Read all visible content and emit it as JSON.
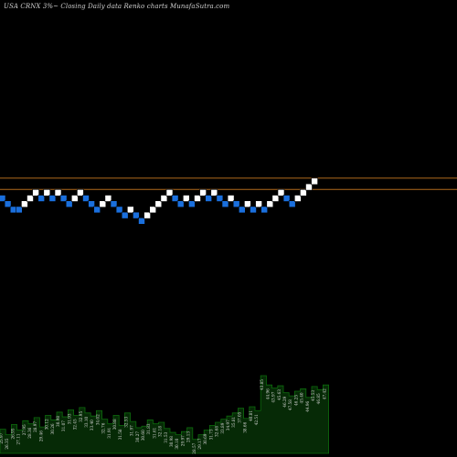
{
  "header": {
    "title": "USA CRNX  3%~  Closing Daily data  Renko  charts MunafaSutra.com"
  },
  "colors": {
    "background": "#000000",
    "up_brick": "#ffffff",
    "down_brick": "#1a6fdd",
    "reference_line": "#b06a1c",
    "volume_fill": "#062a06",
    "volume_edge": "#0d6a0d"
  },
  "chart_data": {
    "type": "renko",
    "title": "USA CRNX  3%~  Closing Daily data  Renko  charts MunafaSutra.com",
    "brick_size_note": "3%",
    "grid": false,
    "legend": "none",
    "bricks": [
      {
        "dir": "down",
        "level": 0
      },
      {
        "dir": "down",
        "level": -1
      },
      {
        "dir": "down",
        "level": -2
      },
      {
        "dir": "down",
        "level": -2
      },
      {
        "dir": "up",
        "level": -1
      },
      {
        "dir": "up",
        "level": 0
      },
      {
        "dir": "up",
        "level": 1
      },
      {
        "dir": "down",
        "level": 0
      },
      {
        "dir": "up",
        "level": 1
      },
      {
        "dir": "down",
        "level": 0
      },
      {
        "dir": "up",
        "level": 1
      },
      {
        "dir": "down",
        "level": 0
      },
      {
        "dir": "down",
        "level": -1
      },
      {
        "dir": "up",
        "level": 0
      },
      {
        "dir": "up",
        "level": 1
      },
      {
        "dir": "down",
        "level": 0
      },
      {
        "dir": "down",
        "level": -1
      },
      {
        "dir": "down",
        "level": -2
      },
      {
        "dir": "up",
        "level": -1
      },
      {
        "dir": "up",
        "level": 0
      },
      {
        "dir": "down",
        "level": -1
      },
      {
        "dir": "down",
        "level": -2
      },
      {
        "dir": "down",
        "level": -3
      },
      {
        "dir": "up",
        "level": -2
      },
      {
        "dir": "down",
        "level": -3
      },
      {
        "dir": "down",
        "level": -4
      },
      {
        "dir": "up",
        "level": -3
      },
      {
        "dir": "up",
        "level": -2
      },
      {
        "dir": "up",
        "level": -1
      },
      {
        "dir": "up",
        "level": 0
      },
      {
        "dir": "up",
        "level": 1
      },
      {
        "dir": "down",
        "level": 0
      },
      {
        "dir": "down",
        "level": -1
      },
      {
        "dir": "up",
        "level": 0
      },
      {
        "dir": "down",
        "level": -1
      },
      {
        "dir": "up",
        "level": 0
      },
      {
        "dir": "up",
        "level": 1
      },
      {
        "dir": "down",
        "level": 0
      },
      {
        "dir": "up",
        "level": 1
      },
      {
        "dir": "down",
        "level": 0
      },
      {
        "dir": "down",
        "level": -1
      },
      {
        "dir": "up",
        "level": 0
      },
      {
        "dir": "down",
        "level": -1
      },
      {
        "dir": "down",
        "level": -2
      },
      {
        "dir": "up",
        "level": -1
      },
      {
        "dir": "down",
        "level": -2
      },
      {
        "dir": "up",
        "level": -1
      },
      {
        "dir": "down",
        "level": -2
      },
      {
        "dir": "up",
        "level": -1
      },
      {
        "dir": "up",
        "level": 0
      },
      {
        "dir": "up",
        "level": 1
      },
      {
        "dir": "down",
        "level": 0
      },
      {
        "dir": "down",
        "level": -1
      },
      {
        "dir": "up",
        "level": 0
      },
      {
        "dir": "up",
        "level": 1
      },
      {
        "dir": "up",
        "level": 2
      },
      {
        "dir": "up",
        "level": 3
      }
    ],
    "reference_lines": [
      {
        "level": 3
      },
      {
        "level": 1
      }
    ],
    "volume_labels": [
      "25.97",
      "26.35",
      "26.95",
      "27.11",
      "27.95",
      "28.36",
      "28.97",
      "29.46",
      "30.12",
      "30.26",
      "30.98",
      "31.07",
      "31.93",
      "32.45",
      "32.95",
      "33.10",
      "33.40",
      "34.02",
      "32.76",
      "31.91",
      "30.88",
      "31.58",
      "32.53",
      "31.97",
      "30.27",
      "30.60",
      "31.83",
      "31.61",
      "32.18",
      "31.53",
      "30.98",
      "30.10",
      "29.97",
      "29.13",
      "28.57",
      "29.17",
      "30.69",
      "31.73",
      "32.68",
      "33.89",
      "34.97",
      "35.81",
      "37.05",
      "38.66",
      "40.81",
      "42.51",
      "43.85",
      "44.96",
      "43.97",
      "45.63",
      "46.29",
      "47.58",
      "46.25",
      "45.40",
      "44.96",
      "45.53",
      "46.85",
      "47.42"
    ],
    "volume_levels": [
      0.31,
      0.24,
      0.37,
      0.3,
      0.42,
      0.38,
      0.46,
      0.34,
      0.49,
      0.43,
      0.53,
      0.47,
      0.56,
      0.49,
      0.59,
      0.52,
      0.48,
      0.55,
      0.44,
      0.38,
      0.49,
      0.36,
      0.52,
      0.41,
      0.33,
      0.35,
      0.43,
      0.38,
      0.4,
      0.32,
      0.27,
      0.24,
      0.28,
      0.33,
      0.18,
      0.24,
      0.3,
      0.36,
      0.4,
      0.44,
      0.48,
      0.52,
      0.58,
      0.45,
      0.6,
      0.55,
      1.0,
      0.88,
      0.84,
      0.87,
      0.78,
      0.74,
      0.8,
      0.83,
      0.72,
      0.86,
      0.82,
      0.88
    ]
  }
}
